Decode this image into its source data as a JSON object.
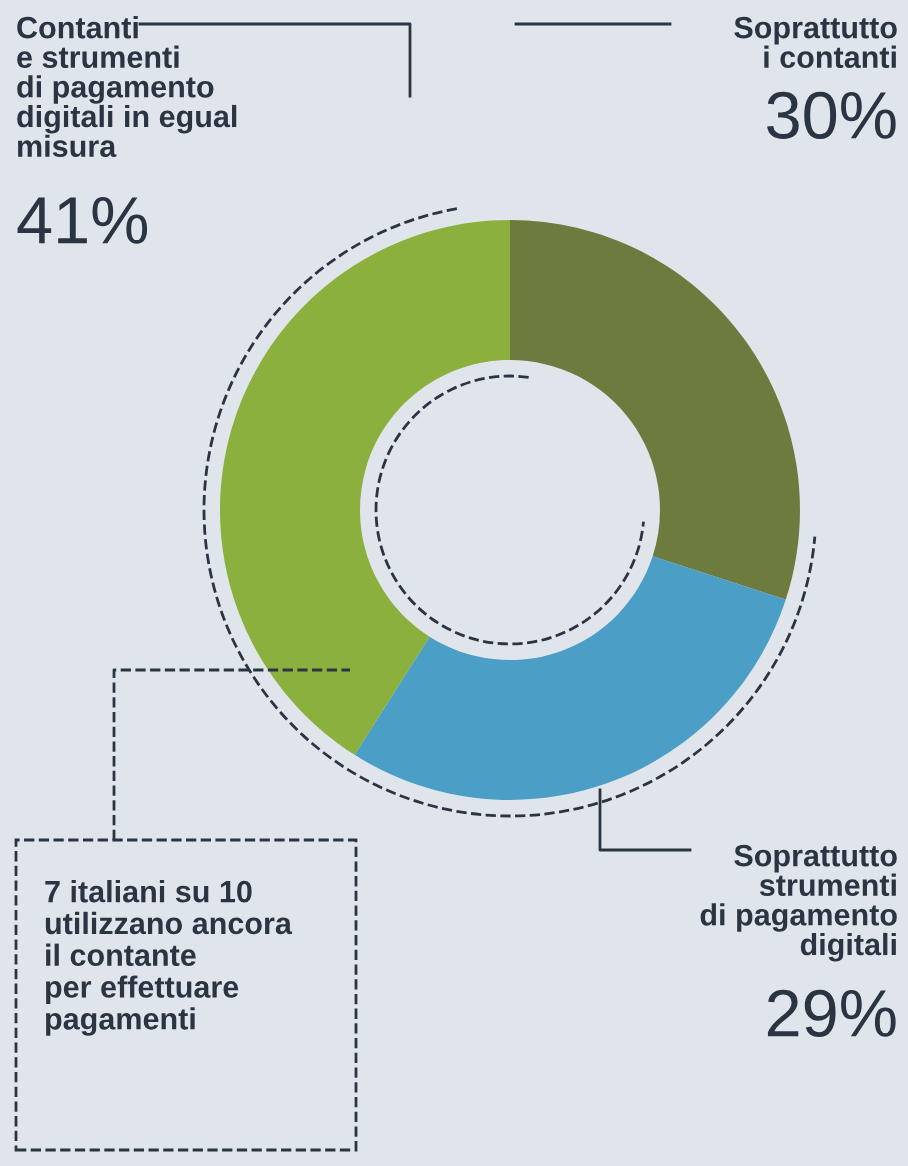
{
  "chart_data": {
    "type": "donut",
    "categories": [
      "Soprattutto\ni contanti",
      "Soprattutto\nstrumenti\ndi pagamento\ndigitali",
      "Contanti\ne strumenti\ndi pagamento\ndigitali in egual\nmisura"
    ],
    "values": [
      30,
      29,
      41
    ],
    "value_labels": [
      "30%",
      "29%",
      "41%"
    ],
    "colors": [
      "#6d7c3e",
      "#4b9ec5",
      "#8bb03e"
    ],
    "annotations": [
      "7 italiani su 10\nutilizzano ancora\nil contante\nper effettuare\npagamenti"
    ]
  }
}
